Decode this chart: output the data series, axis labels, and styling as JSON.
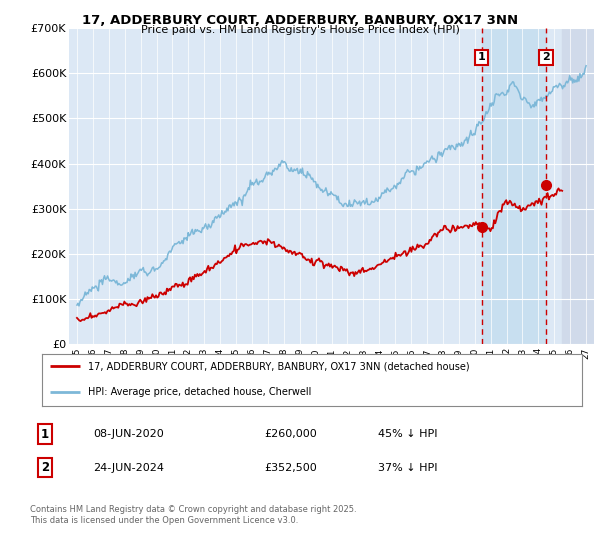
{
  "title_line1": "17, ADDERBURY COURT, ADDERBURY, BANBURY, OX17 3NN",
  "title_line2": "Price paid vs. HM Land Registry's House Price Index (HPI)",
  "ylim": [
    0,
    700000
  ],
  "yticks": [
    0,
    100000,
    200000,
    300000,
    400000,
    500000,
    600000,
    700000
  ],
  "ytick_labels": [
    "£0",
    "£100K",
    "£200K",
    "£300K",
    "£400K",
    "£500K",
    "£600K",
    "£700K"
  ],
  "xlim": [
    1994.5,
    2027.5
  ],
  "hpi_color": "#7db8d8",
  "price_color": "#cc0000",
  "marker1_x": 2020.44,
  "marker1_price": 260000,
  "marker2_x": 2024.48,
  "marker2_price": 352500,
  "vline_color": "#cc0000",
  "legend_line1": "17, ADDERBURY COURT, ADDERBURY, BANBURY, OX17 3NN (detached house)",
  "legend_line2": "HPI: Average price, detached house, Cherwell",
  "background_color": "#ffffff",
  "plot_bg_color": "#dce8f5",
  "grid_color": "#ffffff",
  "highlight_bg": "#dce8f8",
  "hatch_color": "#b0bfd0",
  "future_start": 2025.5
}
